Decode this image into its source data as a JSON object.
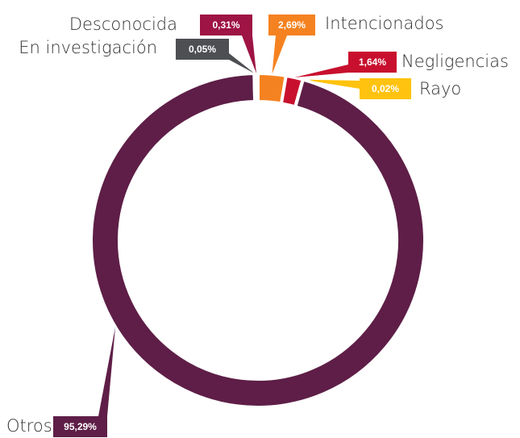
{
  "chart_data": {
    "type": "donut",
    "categories": [
      "Intencionados",
      "Negligencias",
      "Rayo",
      "Otros",
      "En investigación",
      "Desconocida"
    ],
    "values": [
      2.69,
      1.64,
      0.02,
      95.29,
      0.05,
      0.31
    ],
    "value_labels": [
      "2,69%",
      "1,64%",
      "0,02%",
      "95,29%",
      "0,05%",
      "0,31%"
    ],
    "colors": [
      "#f58220",
      "#c8102e",
      "#ffc20e",
      "#5e1e47",
      "#4d4f53",
      "#9e1444"
    ]
  }
}
